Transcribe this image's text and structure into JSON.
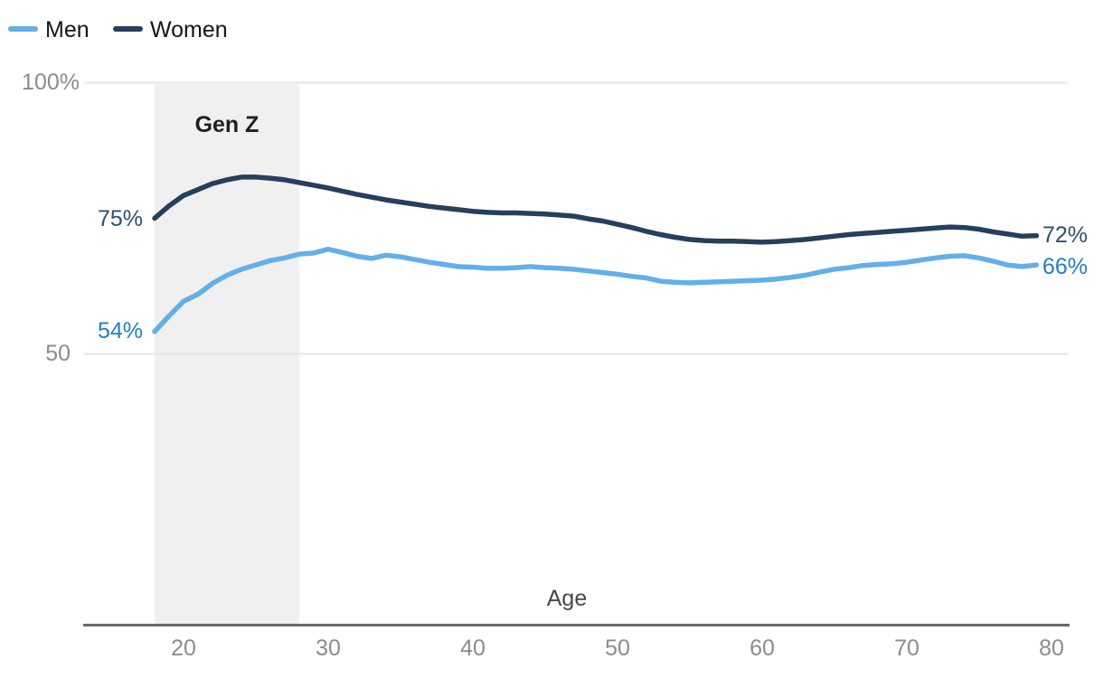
{
  "chart_data": {
    "type": "line",
    "xlabel": "Age",
    "legend_position": "top-left",
    "grid": "horizontal-only",
    "ylim": [
      0,
      100
    ],
    "xlim": [
      13,
      81
    ],
    "x": [
      18,
      19,
      20,
      21,
      22,
      23,
      24,
      25,
      26,
      27,
      28,
      29,
      30,
      31,
      32,
      33,
      34,
      35,
      36,
      37,
      38,
      39,
      40,
      41,
      42,
      43,
      44,
      45,
      46,
      47,
      48,
      49,
      50,
      51,
      52,
      53,
      54,
      55,
      56,
      57,
      58,
      59,
      60,
      61,
      62,
      63,
      64,
      65,
      66,
      67,
      68,
      69,
      70,
      71,
      72,
      73,
      74,
      75,
      76,
      77,
      78,
      79
    ],
    "series": [
      {
        "name": "Men",
        "color": "#63afe8",
        "label_color": "#2180c3",
        "start_label": "54%",
        "end_label": "66%",
        "values": [
          54.1,
          57.0,
          59.7,
          61.0,
          63.0,
          64.5,
          65.6,
          66.4,
          67.2,
          67.7,
          68.4,
          68.6,
          69.3,
          68.7,
          68.0,
          67.6,
          68.2,
          67.9,
          67.4,
          66.9,
          66.5,
          66.1,
          66.0,
          65.8,
          65.8,
          65.9,
          66.1,
          65.9,
          65.8,
          65.6,
          65.3,
          65.0,
          64.7,
          64.3,
          64.0,
          63.4,
          63.2,
          63.1,
          63.2,
          63.3,
          63.4,
          63.5,
          63.6,
          63.8,
          64.1,
          64.5,
          65.1,
          65.6,
          65.9,
          66.3,
          66.5,
          66.6,
          66.9,
          67.3,
          67.7,
          68.0,
          68.1,
          67.7,
          67.1,
          66.4,
          66.1,
          66.4
        ]
      },
      {
        "name": "Women",
        "color": "#24405c",
        "label_color": "#2d506f",
        "start_label": "75%",
        "end_label": "72%",
        "values": [
          75.0,
          77.3,
          79.2,
          80.3,
          81.4,
          82.1,
          82.6,
          82.6,
          82.4,
          82.1,
          81.6,
          81.1,
          80.6,
          80.0,
          79.4,
          78.9,
          78.4,
          78.0,
          77.6,
          77.2,
          76.9,
          76.6,
          76.3,
          76.1,
          76.0,
          76.0,
          75.9,
          75.8,
          75.6,
          75.4,
          74.9,
          74.5,
          73.9,
          73.3,
          72.6,
          72.0,
          71.5,
          71.1,
          70.9,
          70.8,
          70.8,
          70.7,
          70.6,
          70.7,
          70.9,
          71.1,
          71.4,
          71.7,
          72.0,
          72.2,
          72.4,
          72.6,
          72.8,
          73.0,
          73.2,
          73.4,
          73.3,
          73.0,
          72.5,
          72.1,
          71.7,
          71.8
        ]
      }
    ],
    "x_tick_labels": [
      "20",
      "30",
      "40",
      "50",
      "60",
      "70",
      "80"
    ],
    "y_tick_labels": [
      "100%",
      "50"
    ],
    "grid_y_values": [
      100,
      50
    ],
    "band": {
      "label": "Gen Z",
      "from_age": 18,
      "to_age": 28,
      "color": "#f0f0f0"
    }
  }
}
